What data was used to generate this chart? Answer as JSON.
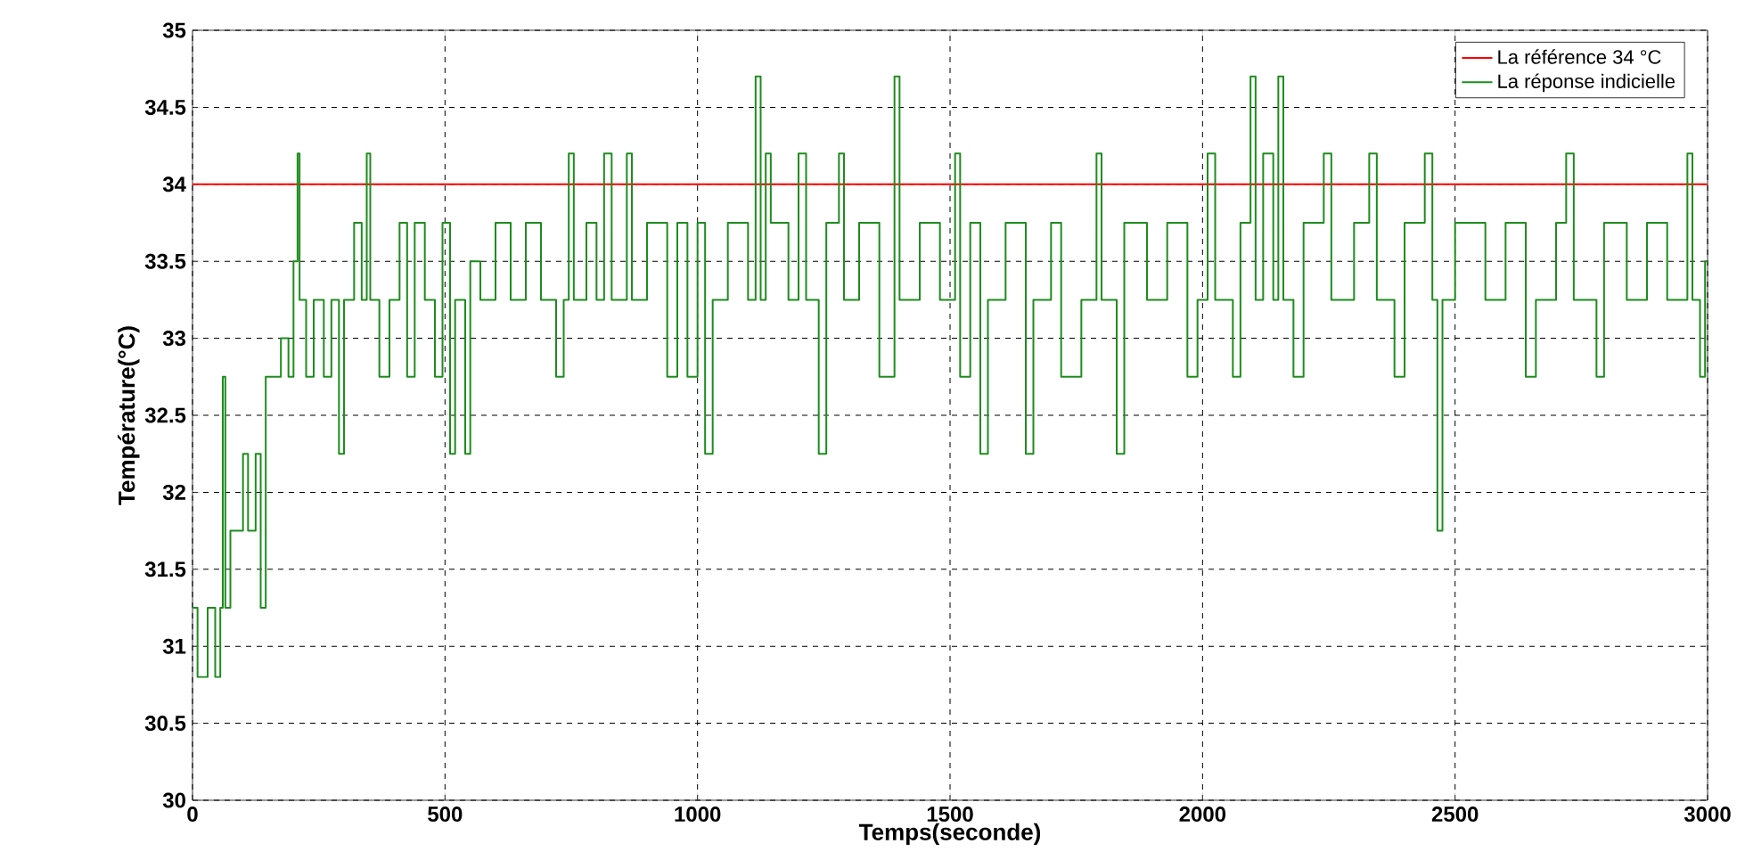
{
  "chart_data": {
    "type": "step",
    "xlabel": "Temps(seconde)",
    "ylabel": "Température(°C)",
    "xlim": [
      0,
      3000
    ],
    "ylim": [
      30,
      35
    ],
    "xticks": [
      0,
      500,
      1000,
      1500,
      2000,
      2500,
      3000
    ],
    "yticks": [
      30,
      30.5,
      31,
      31.5,
      32,
      32.5,
      33,
      33.5,
      34,
      34.5,
      35
    ],
    "grid": true,
    "legend": "top right",
    "series": [
      {
        "name": "La référence 34 °C",
        "type": "line",
        "color": "#ff0000",
        "x": [
          0,
          3000
        ],
        "values": [
          34,
          34
        ]
      },
      {
        "name": "La réponse indicielle",
        "color": "#1e8c1e",
        "x": [
          0,
          10,
          30,
          45,
          55,
          60,
          65,
          75,
          90,
          100,
          110,
          125,
          135,
          145,
          160,
          175,
          190,
          200,
          208,
          212,
          225,
          240,
          260,
          275,
          290,
          300,
          320,
          335,
          345,
          352,
          370,
          390,
          410,
          425,
          440,
          460,
          480,
          495,
          510,
          520,
          540,
          550,
          570,
          600,
          630,
          660,
          690,
          720,
          735,
          745,
          755,
          780,
          800,
          815,
          830,
          860,
          870,
          900,
          940,
          960,
          980,
          1000,
          1015,
          1030,
          1060,
          1100,
          1115,
          1125,
          1135,
          1145,
          1180,
          1200,
          1215,
          1240,
          1255,
          1280,
          1290,
          1320,
          1360,
          1390,
          1400,
          1440,
          1480,
          1510,
          1520,
          1540,
          1560,
          1575,
          1610,
          1650,
          1665,
          1700,
          1720,
          1760,
          1790,
          1800,
          1830,
          1845,
          1890,
          1930,
          1970,
          1990,
          2010,
          2025,
          2060,
          2075,
          2095,
          2105,
          2120,
          2140,
          2150,
          2160,
          2180,
          2200,
          2240,
          2255,
          2300,
          2330,
          2345,
          2380,
          2400,
          2440,
          2455,
          2465,
          2475,
          2500,
          2560,
          2600,
          2640,
          2660,
          2700,
          2720,
          2735,
          2780,
          2795,
          2840,
          2880,
          2920,
          2960,
          2970,
          2985,
          2995,
          3000
        ],
        "values": [
          31.25,
          30.8,
          31.25,
          30.8,
          31.25,
          32.75,
          31.25,
          31.75,
          31.75,
          32.25,
          31.75,
          32.25,
          31.25,
          32.75,
          32.75,
          33.0,
          32.75,
          33.5,
          34.2,
          33.25,
          32.75,
          33.25,
          32.75,
          33.25,
          32.25,
          33.25,
          33.75,
          33.25,
          34.2,
          33.25,
          32.75,
          33.25,
          33.75,
          32.75,
          33.75,
          33.25,
          32.75,
          33.75,
          32.25,
          33.25,
          32.25,
          33.5,
          33.25,
          33.75,
          33.25,
          33.75,
          33.25,
          32.75,
          33.25,
          34.2,
          33.25,
          33.75,
          33.25,
          34.2,
          33.25,
          34.2,
          33.25,
          33.75,
          32.75,
          33.75,
          32.75,
          33.75,
          32.25,
          33.25,
          33.75,
          33.25,
          34.7,
          33.25,
          34.2,
          33.75,
          33.25,
          34.2,
          33.25,
          32.25,
          33.75,
          34.2,
          33.25,
          33.75,
          32.75,
          34.7,
          33.25,
          33.75,
          33.25,
          34.2,
          32.75,
          33.75,
          32.25,
          33.25,
          33.75,
          32.25,
          33.25,
          33.75,
          32.75,
          33.25,
          34.2,
          33.25,
          32.25,
          33.75,
          33.25,
          33.75,
          32.75,
          33.25,
          34.2,
          33.25,
          32.75,
          33.75,
          34.7,
          33.25,
          34.2,
          33.25,
          34.7,
          33.25,
          32.75,
          33.75,
          34.2,
          33.25,
          33.75,
          34.2,
          33.25,
          32.75,
          33.75,
          34.2,
          33.25,
          31.75,
          33.25,
          33.75,
          33.25,
          33.75,
          32.75,
          33.25,
          33.75,
          34.2,
          33.25,
          32.75,
          33.75,
          33.25,
          33.75,
          33.25,
          34.2,
          33.25,
          32.75,
          33.5,
          33.5
        ]
      }
    ]
  }
}
